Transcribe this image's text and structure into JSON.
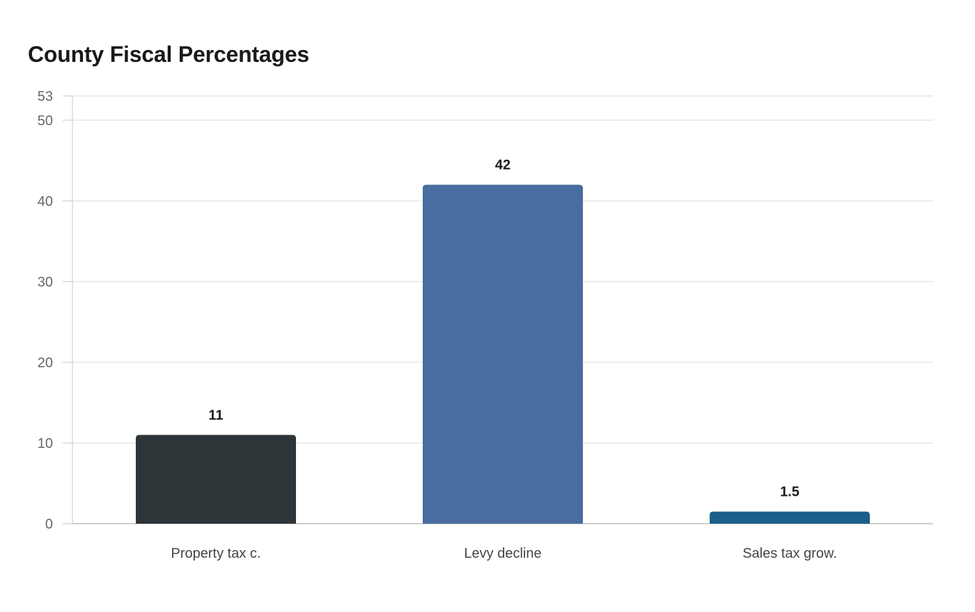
{
  "chart_data": {
    "type": "bar",
    "title": "County Fiscal Percentages",
    "xlabel": "",
    "ylabel": "",
    "categories": [
      "Property tax c.",
      "Levy decline",
      "Sales tax grow."
    ],
    "values": [
      11,
      42,
      1.5
    ],
    "value_labels": [
      "11",
      "42",
      "1.5"
    ],
    "colors": [
      "#2e3538",
      "#4a6da1",
      "#1b5e8a"
    ],
    "ylim": [
      0,
      53
    ],
    "yticks": [
      0,
      10,
      20,
      30,
      40,
      50,
      53
    ],
    "grid": true,
    "legend": "none"
  }
}
